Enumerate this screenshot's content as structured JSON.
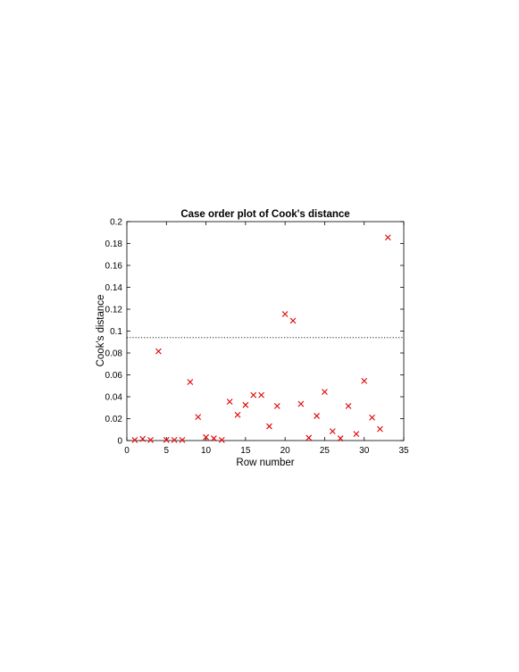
{
  "chart_data": {
    "type": "scatter",
    "title": "Case order plot of Cook's distance",
    "xlabel": "Row number",
    "ylabel": "Cook's distance",
    "xlim": [
      0,
      35
    ],
    "ylim": [
      0,
      0.2
    ],
    "xticks": [
      "0",
      "5",
      "10",
      "15",
      "20",
      "25",
      "30",
      "35"
    ],
    "yticks": [
      "0",
      "0.02",
      "0.04",
      "0.06",
      "0.08",
      "0.1",
      "0.12",
      "0.14",
      "0.16",
      "0.18",
      "0.2"
    ],
    "grid": false,
    "marker": "x",
    "marker_color": "#e00000",
    "threshold_line": {
      "y": 0.094,
      "style": "dotted",
      "color": "#000000"
    },
    "x": [
      1,
      2,
      3,
      4,
      5,
      6,
      7,
      8,
      9,
      10,
      11,
      12,
      13,
      14,
      15,
      16,
      17,
      18,
      19,
      20,
      21,
      22,
      23,
      24,
      25,
      26,
      27,
      28,
      29,
      30,
      31,
      32,
      33
    ],
    "y": [
      0.0005,
      0.0015,
      0.0005,
      0.0815,
      0.0005,
      0.0005,
      0.0005,
      0.0535,
      0.0215,
      0.003,
      0.002,
      0.0005,
      0.0355,
      0.0235,
      0.0325,
      0.0415,
      0.0415,
      0.013,
      0.0315,
      0.1155,
      0.1095,
      0.0335,
      0.0025,
      0.0225,
      0.0445,
      0.0085,
      0.002,
      0.0315,
      0.006,
      0.0545,
      0.021,
      0.0105,
      0.1855
    ]
  }
}
